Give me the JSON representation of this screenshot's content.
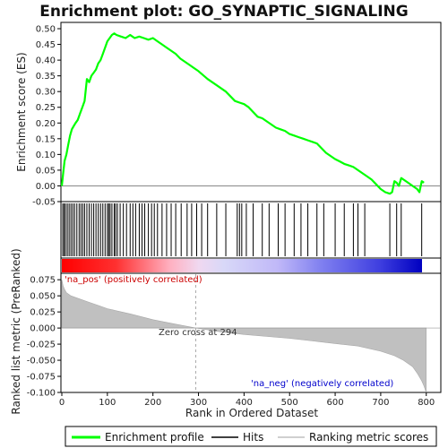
{
  "chart_data": {
    "type": "line",
    "title": "Enrichment plot: GO_SYNAPTIC_SIGNALING",
    "xlabel": "Rank in Ordered Dataset",
    "xlim": [
      0,
      830
    ],
    "x_ticks": [
      0,
      100,
      200,
      300,
      400,
      500,
      600,
      700,
      800
    ],
    "panels": {
      "enrichment": {
        "ylabel": "Enrichment score (ES)",
        "ylim": [
          -0.05,
          0.52
        ],
        "y_ticks": [
          "0.50",
          "0.45",
          "0.40",
          "0.35",
          "0.30",
          "0.25",
          "0.20",
          "0.15",
          "0.10",
          "0.05",
          "0.00",
          "-0.05"
        ],
        "y_tick_values": [
          0.5,
          0.45,
          0.4,
          0.35,
          0.3,
          0.25,
          0.2,
          0.15,
          0.1,
          0.05,
          0.0,
          -0.05
        ],
        "series": [
          {
            "name": "Enrichment profile",
            "color": "#00ff00",
            "x": [
              0,
              3,
              6,
              10,
              14,
              18,
              22,
              26,
              30,
              35,
              40,
              45,
              50,
              55,
              60,
              65,
              70,
              75,
              80,
              85,
              90,
              95,
              100,
              105,
              110,
              115,
              120,
              130,
              140,
              150,
              155,
              160,
              170,
              180,
              190,
              200,
              210,
              220,
              230,
              240,
              250,
              260,
              270,
              280,
              290,
              300,
              320,
              340,
              360,
              380,
              390,
              400,
              410,
              420,
              430,
              440,
              450,
              460,
              470,
              480,
              490,
              500,
              510,
              520,
              530,
              540,
              550,
              560,
              570,
              580,
              590,
              600,
              610,
              620,
              630,
              640,
              650,
              660,
              670,
              680,
              690,
              700,
              710,
              720,
              725,
              730,
              735,
              740,
              745,
              750,
              760,
              770,
              780,
              785,
              790,
              795
            ],
            "y": [
              0.0,
              0.04,
              0.08,
              0.1,
              0.13,
              0.16,
              0.18,
              0.19,
              0.2,
              0.21,
              0.23,
              0.25,
              0.27,
              0.34,
              0.33,
              0.35,
              0.36,
              0.37,
              0.39,
              0.4,
              0.42,
              0.44,
              0.46,
              0.47,
              0.48,
              0.485,
              0.48,
              0.475,
              0.47,
              0.48,
              0.475,
              0.47,
              0.475,
              0.47,
              0.465,
              0.47,
              0.46,
              0.45,
              0.44,
              0.43,
              0.42,
              0.405,
              0.395,
              0.385,
              0.375,
              0.365,
              0.34,
              0.32,
              0.3,
              0.27,
              0.265,
              0.26,
              0.25,
              0.235,
              0.22,
              0.215,
              0.205,
              0.195,
              0.185,
              0.18,
              0.175,
              0.165,
              0.16,
              0.155,
              0.15,
              0.145,
              0.14,
              0.135,
              0.12,
              0.105,
              0.095,
              0.085,
              0.078,
              0.07,
              0.065,
              0.06,
              0.05,
              0.04,
              0.03,
              0.02,
              0.005,
              -0.01,
              -0.02,
              -0.025,
              -0.02,
              0.015,
              0.01,
              0.0,
              0.025,
              0.02,
              0.01,
              0.0,
              -0.01,
              -0.02,
              0.015,
              0.01
            ]
          }
        ]
      },
      "hits": {
        "name": "Hits",
        "color": "#000000",
        "positions": [
          2,
          5,
          8,
          12,
          16,
          20,
          24,
          28,
          33,
          38,
          42,
          46,
          50,
          55,
          60,
          65,
          70,
          75,
          80,
          85,
          90,
          95,
          100,
          103,
          106,
          110,
          115,
          118,
          122,
          128,
          135,
          142,
          150,
          156,
          162,
          170,
          176,
          182,
          190,
          197,
          203,
          210,
          220,
          230,
          240,
          250,
          262,
          275,
          285,
          296,
          307,
          320,
          340,
          360,
          385,
          390,
          395,
          405,
          420,
          440,
          455,
          475,
          490,
          510,
          525,
          540,
          560,
          575,
          600,
          620,
          640,
          650,
          665,
          720,
          735,
          745,
          790
        ]
      },
      "ranked_metric": {
        "name": "Ranking metric scores",
        "color": "#c0c0c0",
        "ylabel": "Ranked list metric (PreRanked)",
        "ylim": [
          -0.1,
          0.085
        ],
        "y_ticks": [
          "0.075",
          "0.050",
          "0.025",
          "0.000",
          "-0.025",
          "-0.050",
          "-0.075",
          "-0.100"
        ],
        "y_tick_values": [
          0.075,
          0.05,
          0.025,
          0.0,
          -0.025,
          -0.05,
          -0.075,
          -0.1
        ],
        "x": [
          0,
          3,
          6,
          10,
          20,
          40,
          60,
          80,
          100,
          150,
          200,
          250,
          294,
          350,
          400,
          450,
          500,
          550,
          600,
          650,
          700,
          730,
          750,
          770,
          780,
          790,
          795,
          800
        ],
        "y": [
          0.075,
          0.065,
          0.06,
          0.055,
          0.05,
          0.045,
          0.04,
          0.035,
          0.03,
          0.022,
          0.013,
          0.006,
          0.0,
          -0.006,
          -0.01,
          -0.013,
          -0.016,
          -0.02,
          -0.024,
          -0.028,
          -0.036,
          -0.043,
          -0.05,
          -0.06,
          -0.07,
          -0.082,
          -0.09,
          -0.1
        ]
      }
    },
    "zero_cross_rank": 294,
    "annotations": {
      "pos_label": "'na_pos' (positively correlated)",
      "neg_label": "'na_neg' (negatively correlated)",
      "zero_cross": "Zero cross at 294"
    },
    "legend": [
      {
        "label": "Enrichment profile",
        "color": "#00ff00"
      },
      {
        "label": "Hits",
        "color": "#000000"
      },
      {
        "label": "Ranking metric scores",
        "color": "#c0c0c0"
      }
    ],
    "colors": {
      "pos": "#ff0000",
      "neg": "#0000ff",
      "pos_label": "#cc0000",
      "neg_label": "#0000cc"
    }
  }
}
